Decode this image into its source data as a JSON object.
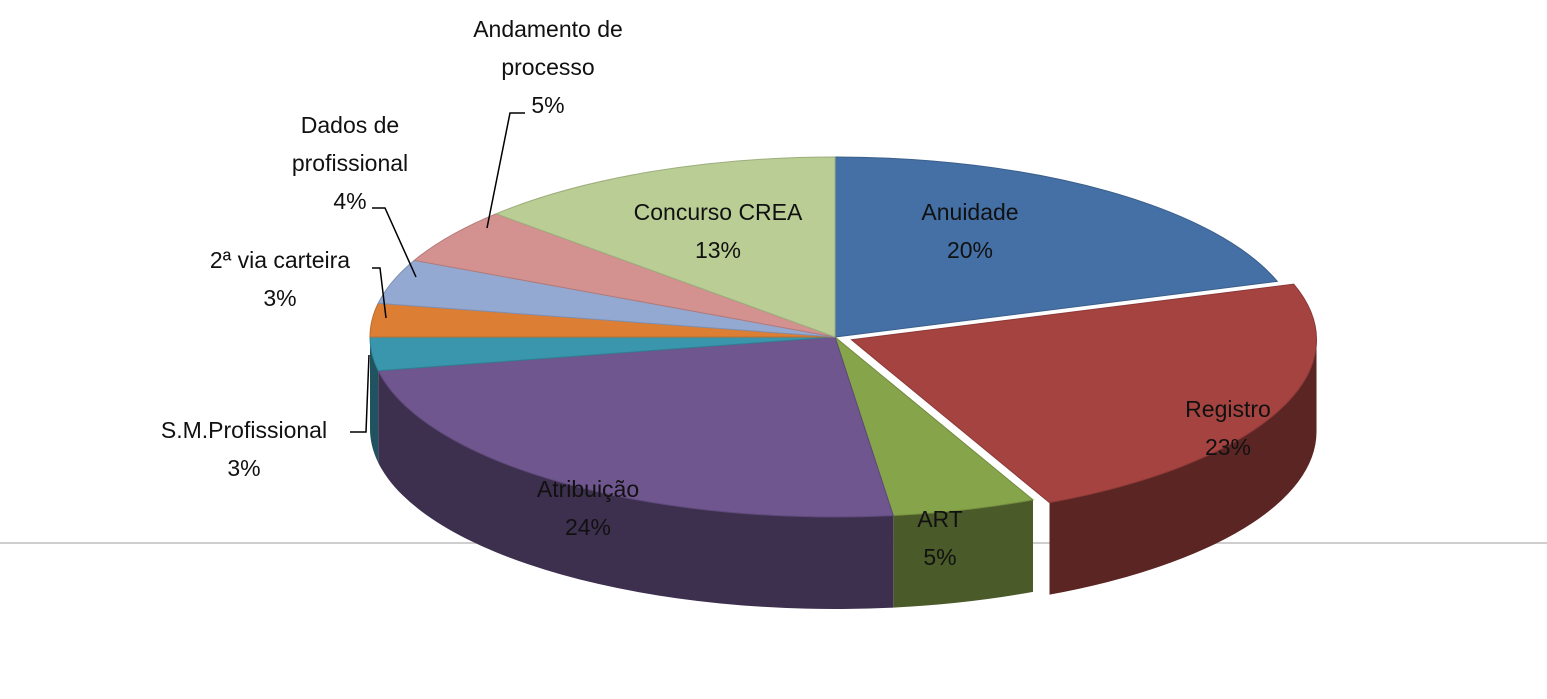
{
  "chart_data": {
    "type": "pie",
    "categories": [
      "Anuidade",
      "Registro",
      "ART",
      "Atribuição",
      "S.M.Profissional",
      "2ª via carteira",
      "Dados de profissional",
      "Andamento de processo",
      "Concurso CREA"
    ],
    "values": [
      20,
      23,
      5,
      24,
      3,
      3,
      4,
      5,
      13
    ],
    "value_labels": [
      "20%",
      "23%",
      "5%",
      "24%",
      "3%",
      "3%",
      "4%",
      "5%",
      "13%"
    ],
    "colors": [
      "#4470a5",
      "#a54341",
      "#86a44a",
      "#6f568e",
      "#3a96ad",
      "#dc7f35",
      "#94a9d2",
      "#d39190",
      "#b9cd94"
    ]
  }
}
